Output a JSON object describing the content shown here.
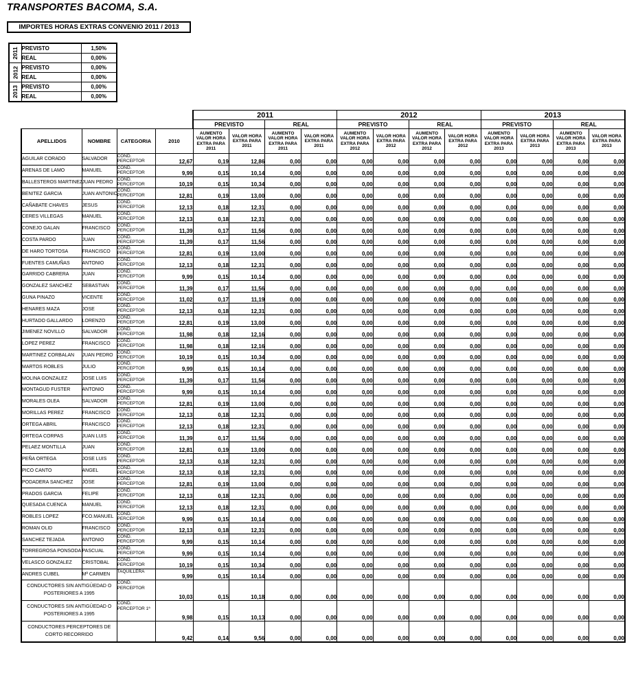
{
  "page": {
    "title": "TRANSPORTES BACOMA, S.A.",
    "subtitle": "IMPORTES HORAS EXTRAS CONVENIO 2011 / 2013"
  },
  "summary_table": {
    "groups": [
      {
        "year": "2011",
        "rows": [
          {
            "label": "PREVISTO",
            "value": "1,50%"
          },
          {
            "label": "REAL",
            "value": "0,00%"
          }
        ]
      },
      {
        "year": "2012",
        "rows": [
          {
            "label": "PREVISTO",
            "value": "0,00%"
          },
          {
            "label": "REAL",
            "value": "0,00%"
          }
        ]
      },
      {
        "year": "2013",
        "rows": [
          {
            "label": "PREVISTO",
            "value": "0,00%"
          },
          {
            "label": "REAL",
            "value": "0,00%"
          }
        ]
      }
    ]
  },
  "main_table": {
    "left_headers": [
      "APELLIDOS",
      "NOMBRE",
      "CATEGORIA",
      "2010"
    ],
    "years": [
      "2011",
      "2012",
      "2013"
    ],
    "sections": [
      "PREVISTO",
      "REAL"
    ],
    "col_headers": [
      "AUMENTO VALOR HORA EXTRA PARA 2011",
      "VALOR HORA EXTRA PARA 2011",
      "AUMENTO VALOR HORA EXTRA PARA 2011",
      "VALOR HORA EXTRA PARA 2011",
      "AUMENTO VALOR HORA EXTRA PARA 2012",
      "VALOR HORA EXTRA PARA 2012",
      "AUMENTO VALOR HORA EXTRA PARA 2012",
      "VALOR HORA EXTRA PARA 2012",
      "AUMENTO VALOR HORA EXTRA PARA 2013",
      "VALOR HORA EXTRA PARA 2013",
      "AUMENTO VALOR HORA EXTRA PARA 2013",
      "VALOR HORA EXTRA PARA 2013"
    ],
    "rows": [
      {
        "apellidos": "AGUILAR CORADO",
        "nombre": "SALVADOR",
        "categoria": "COND. PERCEPTOR",
        "y2010": "12,67",
        "values": [
          "0,19",
          "12,86",
          "0,00",
          "0,00",
          "0,00",
          "0,00",
          "0,00",
          "0,00",
          "0,00",
          "0,00",
          "0,00",
          "0,00"
        ]
      },
      {
        "apellidos": "ARENAS DE LAMO",
        "nombre": "MANUEL",
        "categoria": "COND. PERCEPTOR",
        "y2010": "9,99",
        "values": [
          "0,15",
          "10,14",
          "0,00",
          "0,00",
          "0,00",
          "0,00",
          "0,00",
          "0,00",
          "0,00",
          "0,00",
          "0,00",
          "0,00"
        ]
      },
      {
        "apellidos": "BALLESTEROS MARTINEZ",
        "nombre": "JUAN PEDRO",
        "categoria": "COND. PERCEPTOR",
        "y2010": "10,19",
        "values": [
          "0,15",
          "10,34",
          "0,00",
          "0,00",
          "0,00",
          "0,00",
          "0,00",
          "0,00",
          "0,00",
          "0,00",
          "0,00",
          "0,00"
        ]
      },
      {
        "apellidos": "BENITEZ GARCIA",
        "nombre": "JUAN ANTONIO",
        "categoria": "COND. PERCEPTOR",
        "y2010": "12,81",
        "values": [
          "0,19",
          "13,00",
          "0,00",
          "0,00",
          "0,00",
          "0,00",
          "0,00",
          "0,00",
          "0,00",
          "0,00",
          "0,00",
          "0,00"
        ]
      },
      {
        "apellidos": "CAÑABATE CHAVES",
        "nombre": "JESUS",
        "categoria": "COND. PERCEPTOR",
        "y2010": "12,13",
        "values": [
          "0,18",
          "12,31",
          "0,00",
          "0,00",
          "0,00",
          "0,00",
          "0,00",
          "0,00",
          "0,00",
          "0,00",
          "0,00",
          "0,00"
        ]
      },
      {
        "apellidos": "CERES VILLEGAS",
        "nombre": "MANUEL",
        "categoria": "COND. PERCEPTOR",
        "y2010": "12,13",
        "values": [
          "0,18",
          "12,31",
          "0,00",
          "0,00",
          "0,00",
          "0,00",
          "0,00",
          "0,00",
          "0,00",
          "0,00",
          "0,00",
          "0,00"
        ]
      },
      {
        "apellidos": "CONEJO GALAN",
        "nombre": "FRANCISCO",
        "categoria": "COND. PERCEPTOR",
        "y2010": "11,39",
        "values": [
          "0,17",
          "11,56",
          "0,00",
          "0,00",
          "0,00",
          "0,00",
          "0,00",
          "0,00",
          "0,00",
          "0,00",
          "0,00",
          "0,00"
        ]
      },
      {
        "apellidos": "COSTA PARDO",
        "nombre": "JUAN",
        "categoria": "COND. PERCEPTOR",
        "y2010": "11,39",
        "values": [
          "0,17",
          "11,56",
          "0,00",
          "0,00",
          "0,00",
          "0,00",
          "0,00",
          "0,00",
          "0,00",
          "0,00",
          "0,00",
          "0,00"
        ]
      },
      {
        "apellidos": "DE HARO TORTOSA",
        "nombre": "FRANCISCO",
        "categoria": "COND. PERCEPTOR",
        "y2010": "12,81",
        "values": [
          "0,19",
          "13,00",
          "0,00",
          "0,00",
          "0,00",
          "0,00",
          "0,00",
          "0,00",
          "0,00",
          "0,00",
          "0,00",
          "0,00"
        ]
      },
      {
        "apellidos": "FUENTES CAMUÑAS",
        "nombre": "ANTONIO",
        "categoria": "COND. PERCEPTOR",
        "y2010": "12,13",
        "values": [
          "0,18",
          "12,31",
          "0,00",
          "0,00",
          "0,00",
          "0,00",
          "0,00",
          "0,00",
          "0,00",
          "0,00",
          "0,00",
          "0,00"
        ]
      },
      {
        "apellidos": "GARRIDO CABRERA",
        "nombre": "JUAN",
        "categoria": "COND. PERCEPTOR",
        "y2010": "9,99",
        "values": [
          "0,15",
          "10,14",
          "0,00",
          "0,00",
          "0,00",
          "0,00",
          "0,00",
          "0,00",
          "0,00",
          "0,00",
          "0,00",
          "0,00"
        ]
      },
      {
        "apellidos": "GONZALEZ SANCHEZ",
        "nombre": "SEBASTIAN",
        "categoria": "COND. PERCEPTOR",
        "y2010": "11,39",
        "values": [
          "0,17",
          "11,56",
          "0,00",
          "0,00",
          "0,00",
          "0,00",
          "0,00",
          "0,00",
          "0,00",
          "0,00",
          "0,00",
          "0,00"
        ]
      },
      {
        "apellidos": "GUNA PINAZO",
        "nombre": "VICENTE",
        "categoria": "COND. PERCEPTOR",
        "y2010": "11,02",
        "values": [
          "0,17",
          "11,19",
          "0,00",
          "0,00",
          "0,00",
          "0,00",
          "0,00",
          "0,00",
          "0,00",
          "0,00",
          "0,00",
          "0,00"
        ]
      },
      {
        "apellidos": "HENARES MAZA",
        "nombre": "JOSE",
        "categoria": "COND. PERCEPTOR",
        "y2010": "12,13",
        "values": [
          "0,18",
          "12,31",
          "0,00",
          "0,00",
          "0,00",
          "0,00",
          "0,00",
          "0,00",
          "0,00",
          "0,00",
          "0,00",
          "0,00"
        ]
      },
      {
        "apellidos": "HURTADO GALLARDO",
        "nombre": "LORENZO",
        "categoria": "COND. PERCEPTOR",
        "y2010": "12,81",
        "values": [
          "0,19",
          "13,00",
          "0,00",
          "0,00",
          "0,00",
          "0,00",
          "0,00",
          "0,00",
          "0,00",
          "0,00",
          "0,00",
          "0,00"
        ]
      },
      {
        "apellidos": "JIMENEZ NOVILLO",
        "nombre": "SALVADOR",
        "categoria": "COND. PERCEPTOR",
        "y2010": "11,98",
        "values": [
          "0,18",
          "12,16",
          "0,00",
          "0,00",
          "0,00",
          "0,00",
          "0,00",
          "0,00",
          "0,00",
          "0,00",
          "0,00",
          "0,00"
        ]
      },
      {
        "apellidos": "LOPEZ PEREZ",
        "nombre": "FRANCISCO",
        "categoria": "COND. PERCEPTOR",
        "y2010": "11,98",
        "values": [
          "0,18",
          "12,16",
          "0,00",
          "0,00",
          "0,00",
          "0,00",
          "0,00",
          "0,00",
          "0,00",
          "0,00",
          "0,00",
          "0,00"
        ]
      },
      {
        "apellidos": "MARTINEZ CORBALAN",
        "nombre": "JUAN PEDRO",
        "categoria": "COND. PERCEPTOR",
        "y2010": "10,19",
        "values": [
          "0,15",
          "10,34",
          "0,00",
          "0,00",
          "0,00",
          "0,00",
          "0,00",
          "0,00",
          "0,00",
          "0,00",
          "0,00",
          "0,00"
        ]
      },
      {
        "apellidos": "MARTOS ROBLES",
        "nombre": "JULIO",
        "categoria": "COND. PERCEPTOR",
        "y2010": "9,99",
        "values": [
          "0,15",
          "10,14",
          "0,00",
          "0,00",
          "0,00",
          "0,00",
          "0,00",
          "0,00",
          "0,00",
          "0,00",
          "0,00",
          "0,00"
        ]
      },
      {
        "apellidos": "MOLINA GONZALEZ",
        "nombre": "JOSE LUIS",
        "categoria": "COND. PERCEPTOR",
        "y2010": "11,39",
        "values": [
          "0,17",
          "11,56",
          "0,00",
          "0,00",
          "0,00",
          "0,00",
          "0,00",
          "0,00",
          "0,00",
          "0,00",
          "0,00",
          "0,00"
        ]
      },
      {
        "apellidos": "MONTAGUD FUSTER",
        "nombre": "ANTONIO",
        "categoria": "COND. PERCEPTOR",
        "y2010": "9,99",
        "values": [
          "0,15",
          "10,14",
          "0,00",
          "0,00",
          "0,00",
          "0,00",
          "0,00",
          "0,00",
          "0,00",
          "0,00",
          "0,00",
          "0,00"
        ]
      },
      {
        "apellidos": "MORALES OLEA",
        "nombre": "SALVADOR",
        "categoria": "COND. PERCEPTOR",
        "y2010": "12,81",
        "values": [
          "0,19",
          "13,00",
          "0,00",
          "0,00",
          "0,00",
          "0,00",
          "0,00",
          "0,00",
          "0,00",
          "0,00",
          "0,00",
          "0,00"
        ]
      },
      {
        "apellidos": "MORILLAS PEREZ",
        "nombre": "FRANCISCO",
        "categoria": "COND. PERCEPTOR",
        "y2010": "12,13",
        "values": [
          "0,18",
          "12,31",
          "0,00",
          "0,00",
          "0,00",
          "0,00",
          "0,00",
          "0,00",
          "0,00",
          "0,00",
          "0,00",
          "0,00"
        ]
      },
      {
        "apellidos": "ORTEGA ABRIL",
        "nombre": "FRANCISCO",
        "categoria": "COND. PERCEPTOR",
        "y2010": "12,13",
        "values": [
          "0,18",
          "12,31",
          "0,00",
          "0,00",
          "0,00",
          "0,00",
          "0,00",
          "0,00",
          "0,00",
          "0,00",
          "0,00",
          "0,00"
        ]
      },
      {
        "apellidos": "ORTEGA CORPAS",
        "nombre": "JUAN LUIS",
        "categoria": "COND. PERCEPTOR",
        "y2010": "11,39",
        "values": [
          "0,17",
          "11,56",
          "0,00",
          "0,00",
          "0,00",
          "0,00",
          "0,00",
          "0,00",
          "0,00",
          "0,00",
          "0,00",
          "0,00"
        ]
      },
      {
        "apellidos": "PELAEZ MONTILLA",
        "nombre": "JUAN",
        "categoria": "COND. PERCEPTOR",
        "y2010": "12,81",
        "values": [
          "0,19",
          "13,00",
          "0,00",
          "0,00",
          "0,00",
          "0,00",
          "0,00",
          "0,00",
          "0,00",
          "0,00",
          "0,00",
          "0,00"
        ]
      },
      {
        "apellidos": "PEÑA ORTEGA",
        "nombre": "JOSE LUIS",
        "categoria": "COND. PERCEPTOR",
        "y2010": "12,13",
        "values": [
          "0,18",
          "12,31",
          "0,00",
          "0,00",
          "0,00",
          "0,00",
          "0,00",
          "0,00",
          "0,00",
          "0,00",
          "0,00",
          "0,00"
        ]
      },
      {
        "apellidos": "PICO CANTO",
        "nombre": "ANGEL",
        "categoria": "COND. PERCEPTOR",
        "y2010": "12,13",
        "values": [
          "0,18",
          "12,31",
          "0,00",
          "0,00",
          "0,00",
          "0,00",
          "0,00",
          "0,00",
          "0,00",
          "0,00",
          "0,00",
          "0,00"
        ]
      },
      {
        "apellidos": "PODADERA SANCHEZ",
        "nombre": "JOSE",
        "categoria": "COND. PERCEPTOR",
        "y2010": "12,81",
        "values": [
          "0,19",
          "13,00",
          "0,00",
          "0,00",
          "0,00",
          "0,00",
          "0,00",
          "0,00",
          "0,00",
          "0,00",
          "0,00",
          "0,00"
        ]
      },
      {
        "apellidos": "PRADOS GARCIA",
        "nombre": "FELIPE",
        "categoria": "COND. PERCEPTOR",
        "y2010": "12,13",
        "values": [
          "0,18",
          "12,31",
          "0,00",
          "0,00",
          "0,00",
          "0,00",
          "0,00",
          "0,00",
          "0,00",
          "0,00",
          "0,00",
          "0,00"
        ]
      },
      {
        "apellidos": "QUESADA CUENCA",
        "nombre": "MANUEL",
        "categoria": "COND. PERCEPTOR",
        "y2010": "12,13",
        "values": [
          "0,18",
          "12,31",
          "0,00",
          "0,00",
          "0,00",
          "0,00",
          "0,00",
          "0,00",
          "0,00",
          "0,00",
          "0,00",
          "0,00"
        ]
      },
      {
        "apellidos": "ROBLES LOPEZ",
        "nombre": "FCO.MANUEL",
        "categoria": "COND. PERCEPTOR",
        "y2010": "9,99",
        "values": [
          "0,15",
          "10,14",
          "0,00",
          "0,00",
          "0,00",
          "0,00",
          "0,00",
          "0,00",
          "0,00",
          "0,00",
          "0,00",
          "0,00"
        ]
      },
      {
        "apellidos": "ROMAN OLID",
        "nombre": "FRANCISCO",
        "categoria": "COND. PERCEPTOR",
        "y2010": "12,13",
        "values": [
          "0,18",
          "12,31",
          "0,00",
          "0,00",
          "0,00",
          "0,00",
          "0,00",
          "0,00",
          "0,00",
          "0,00",
          "0,00",
          "0,00"
        ]
      },
      {
        "apellidos": "SANCHEZ TEJADA",
        "nombre": "ANTONIO",
        "categoria": "COND. PERCEPTOR",
        "y2010": "9,99",
        "values": [
          "0,15",
          "10,14",
          "0,00",
          "0,00",
          "0,00",
          "0,00",
          "0,00",
          "0,00",
          "0,00",
          "0,00",
          "0,00",
          "0,00"
        ]
      },
      {
        "apellidos": "TORREGROSA PONSODA",
        "nombre": "PASCUAL",
        "categoria": "COND. PERCEPTOR",
        "y2010": "9,99",
        "values": [
          "0,15",
          "10,14",
          "0,00",
          "0,00",
          "0,00",
          "0,00",
          "0,00",
          "0,00",
          "0,00",
          "0,00",
          "0,00",
          "0,00"
        ]
      },
      {
        "apellidos": "VELASCO GONZALEZ",
        "nombre": "CRISTOBAL",
        "categoria": "COND. PERCEPTOR",
        "y2010": "10,19",
        "values": [
          "0,15",
          "10,34",
          "0,00",
          "0,00",
          "0,00",
          "0,00",
          "0,00",
          "0,00",
          "0,00",
          "0,00",
          "0,00",
          "0,00"
        ]
      },
      {
        "apellidos": "ANDRES CUBEL",
        "nombre": "Mª CARMEN",
        "categoria": "TAQUILLERA",
        "y2010": "9,99",
        "values": [
          "0,15",
          "10,14",
          "0,00",
          "0,00",
          "0,00",
          "0,00",
          "0,00",
          "0,00",
          "0,00",
          "0,00",
          "0,00",
          "0,00"
        ]
      }
    ],
    "group_rows": [
      {
        "label": "CONDUCTORES SIN ANTIGÜEDAD O POSTERIORES A 1995",
        "categoria": "COND. PERCEPTOR",
        "y2010": "10,03",
        "values": [
          "0,15",
          "10,18",
          "0,00",
          "0,00",
          "0,00",
          "0,00",
          "0,00",
          "0,00",
          "0,00",
          "0,00",
          "0,00",
          "0,00"
        ]
      },
      {
        "label": "CONDUCTORES SIN ANTIGÜEDAD O POSTERIORES A 1995",
        "categoria": "COND. PERCEPTOR 1ª",
        "y2010": "9,98",
        "values": [
          "0,15",
          "10,13",
          "0,00",
          "0,00",
          "0,00",
          "0,00",
          "0,00",
          "0,00",
          "0,00",
          "0,00",
          "0,00",
          "0,00"
        ]
      },
      {
        "label": "CONDUCTORES PERCEPTORES DE CORTO RECORRIDO",
        "categoria": "",
        "y2010": "9,42",
        "values": [
          "0,14",
          "9,56",
          "0,00",
          "0,00",
          "0,00",
          "0,00",
          "0,00",
          "0,00",
          "0,00",
          "0,00",
          "0,00",
          "0,00"
        ]
      }
    ]
  }
}
